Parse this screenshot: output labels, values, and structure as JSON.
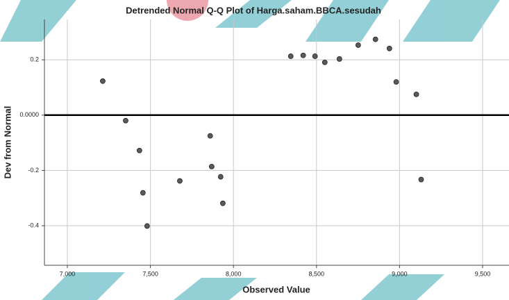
{
  "chart_data": {
    "type": "scatter",
    "title": "Detrended Normal Q-Q Plot of Harga.saham.BBCA.sesudah",
    "x_label": "Observed Value",
    "y_label": "Dev from Normal",
    "x": [
      7213,
      7351,
      7434,
      7455,
      7480,
      7677,
      7860,
      7869,
      7923,
      7936,
      8345,
      8420,
      8491,
      8550,
      8638,
      8751,
      8855,
      8939,
      8980,
      9101,
      9130
    ],
    "values": [
      0.123,
      -0.02,
      -0.128,
      -0.281,
      -0.401,
      -0.238,
      -0.075,
      -0.186,
      -0.223,
      -0.319,
      0.213,
      0.216,
      0.213,
      0.191,
      0.203,
      0.253,
      0.274,
      0.241,
      0.12,
      0.075,
      -0.233
    ],
    "color": "#5a5a5a",
    "xlim": [
      6862,
      9659
    ],
    "ylim": [
      -0.543,
      0.346
    ],
    "xticks": [
      {
        "value": 7000,
        "label": "7,000"
      },
      {
        "value": 7500,
        "label": "7,500"
      },
      {
        "value": 8000,
        "label": "8,000"
      },
      {
        "value": 8500,
        "label": "8,500"
      },
      {
        "value": 9000,
        "label": "9,000"
      },
      {
        "value": 9500,
        "label": "9,500"
      }
    ],
    "yticks": [
      0.2,
      {
        "value": 0,
        "label": "0.0000"
      },
      -0.2,
      -0.4
    ],
    "reference_line": 0,
    "grid": true
  }
}
